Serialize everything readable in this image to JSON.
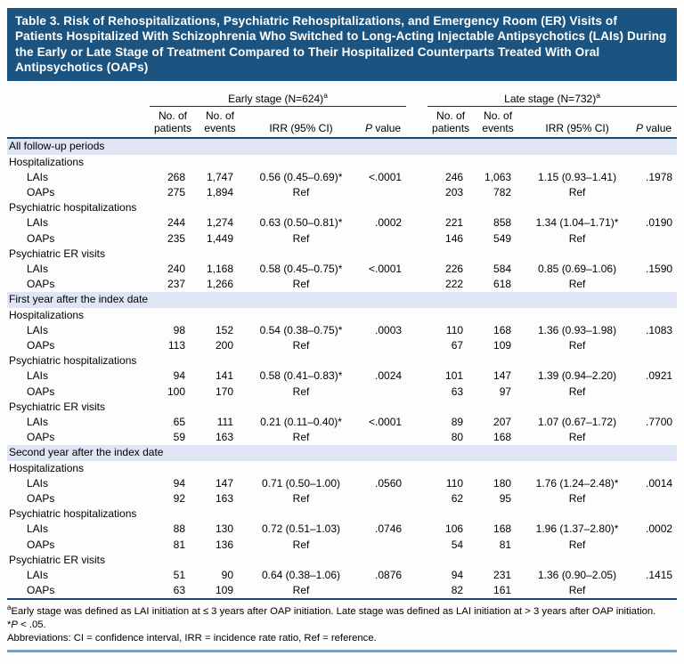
{
  "title": "Table 3. Risk of Rehospitalizations, Psychiatric Rehospitalizations, and Emergency Room (ER) Visits of Patients Hospitalized With Schizophrenia Who Switched to Long-Acting Injectable Antipsychotics (LAIs) During the Early or Late Stage of Treatment Compared to Their Hospitalized Counterparts Treated With Oral Antipsychotics (OAPs)",
  "header": {
    "early_group": "Early stage (N=624)",
    "late_group": "Late stage (N=732)",
    "group_sup": "a"
  },
  "columns": {
    "patients": [
      "No. of",
      "patients"
    ],
    "events": [
      "No. of",
      "events"
    ],
    "irr": "IRR (95% CI)",
    "pvalue": {
      "italic": "P",
      "rest": " value"
    }
  },
  "colors": {
    "title_bg": "#1b5480",
    "section_band": "#dfe5f4",
    "rule_navy": "#1e456b",
    "rule_steel_blue": "#7f9fc1"
  },
  "sections": [
    {
      "label": "All follow-up periods",
      "outcomes": [
        {
          "label": "Hospitalizations",
          "rows": [
            {
              "label": "LAIs",
              "early": [
                "268",
                "1,747",
                "0.56 (0.45–0.69)*",
                "<.0001"
              ],
              "late": [
                "246",
                "1,063",
                "1.15 (0.93–1.41)",
                ".1978"
              ]
            },
            {
              "label": "OAPs",
              "early": [
                "275",
                "1,894",
                "Ref",
                ""
              ],
              "late": [
                "203",
                "782",
                "Ref",
                ""
              ]
            }
          ]
        },
        {
          "label": "Psychiatric hospitalizations",
          "rows": [
            {
              "label": "LAIs",
              "early": [
                "244",
                "1,274",
                "0.63 (0.50–0.81)*",
                ".0002"
              ],
              "late": [
                "221",
                "858",
                "1.34 (1.04–1.71)*",
                ".0190"
              ]
            },
            {
              "label": "OAPs",
              "early": [
                "235",
                "1,449",
                "Ref",
                ""
              ],
              "late": [
                "146",
                "549",
                "Ref",
                ""
              ]
            }
          ]
        },
        {
          "label": "Psychiatric ER visits",
          "rows": [
            {
              "label": "LAIs",
              "early": [
                "240",
                "1,168",
                "0.58 (0.45–0.75)*",
                "<.0001"
              ],
              "late": [
                "226",
                "584",
                "0.85 (0.69–1.06)",
                ".1590"
              ]
            },
            {
              "label": "OAPs",
              "early": [
                "237",
                "1,266",
                "Ref",
                ""
              ],
              "late": [
                "222",
                "618",
                "Ref",
                ""
              ]
            }
          ]
        }
      ]
    },
    {
      "label": "First year after the index date",
      "outcomes": [
        {
          "label": "Hospitalizations",
          "rows": [
            {
              "label": "LAIs",
              "early": [
                "98",
                "152",
                "0.54 (0.38–0.75)*",
                ".0003"
              ],
              "late": [
                "110",
                "168",
                "1.36 (0.93–1.98)",
                ".1083"
              ]
            },
            {
              "label": "OAPs",
              "early": [
                "113",
                "200",
                "Ref",
                ""
              ],
              "late": [
                "67",
                "109",
                "Ref",
                ""
              ]
            }
          ]
        },
        {
          "label": "Psychiatric hospitalizations",
          "rows": [
            {
              "label": "LAIs",
              "early": [
                "94",
                "141",
                "0.58 (0.41–0.83)*",
                ".0024"
              ],
              "late": [
                "101",
                "147",
                "1.39 (0.94–2.20)",
                ".0921"
              ]
            },
            {
              "label": "OAPs",
              "early": [
                "100",
                "170",
                "Ref",
                ""
              ],
              "late": [
                "63",
                "97",
                "Ref",
                ""
              ]
            }
          ]
        },
        {
          "label": "Psychiatric ER visits",
          "rows": [
            {
              "label": "LAIs",
              "early": [
                "65",
                "111",
                "0.21 (0.11–0.40)*",
                "<.0001"
              ],
              "late": [
                "89",
                "207",
                "1.07 (0.67–1.72)",
                ".7700"
              ]
            },
            {
              "label": "OAPs",
              "early": [
                "59",
                "163",
                "Ref",
                ""
              ],
              "late": [
                "80",
                "168",
                "Ref",
                ""
              ]
            }
          ]
        }
      ]
    },
    {
      "label": "Second year after the index date",
      "outcomes": [
        {
          "label": "Hospitalizations",
          "rows": [
            {
              "label": "LAIs",
              "early": [
                "94",
                "147",
                "0.71 (0.50–1.00)",
                ".0560"
              ],
              "late": [
                "110",
                "180",
                "1.76 (1.24–2.48)*",
                ".0014"
              ]
            },
            {
              "label": "OAPs",
              "early": [
                "92",
                "163",
                "Ref",
                ""
              ],
              "late": [
                "62",
                "95",
                "Ref",
                ""
              ]
            }
          ]
        },
        {
          "label": "Psychiatric hospitalizations",
          "rows": [
            {
              "label": "LAIs",
              "early": [
                "88",
                "130",
                "0.72 (0.51–1.03)",
                ".0746"
              ],
              "late": [
                "106",
                "168",
                "1.96 (1.37–2.80)*",
                ".0002"
              ]
            },
            {
              "label": "OAPs",
              "early": [
                "81",
                "136",
                "Ref",
                ""
              ],
              "late": [
                "54",
                "81",
                "Ref",
                ""
              ]
            }
          ]
        },
        {
          "label": "Psychiatric ER visits",
          "rows": [
            {
              "label": "LAIs",
              "early": [
                "51",
                "90",
                "0.64 (0.38–1.06)",
                ".0876"
              ],
              "late": [
                "94",
                "231",
                "1.36 (0.90–2.05)",
                ".1415"
              ]
            },
            {
              "label": "OAPs",
              "early": [
                "63",
                "109",
                "Ref",
                ""
              ],
              "late": [
                "82",
                "161",
                "Ref",
                ""
              ]
            }
          ]
        }
      ]
    }
  ],
  "footnotes": {
    "a": {
      "sup": "a",
      "text": "Early stage was defined as LAI initiation at ≤ 3 years after OAP initiation. Late stage was defined as LAI initiation at > 3 years after OAP initiation."
    },
    "star": {
      "pre": "*",
      "italic": "P",
      "rest": " < .05."
    },
    "abbrev": "Abbreviations: CI = confidence interval, IRR = incidence rate ratio, Ref = reference."
  }
}
